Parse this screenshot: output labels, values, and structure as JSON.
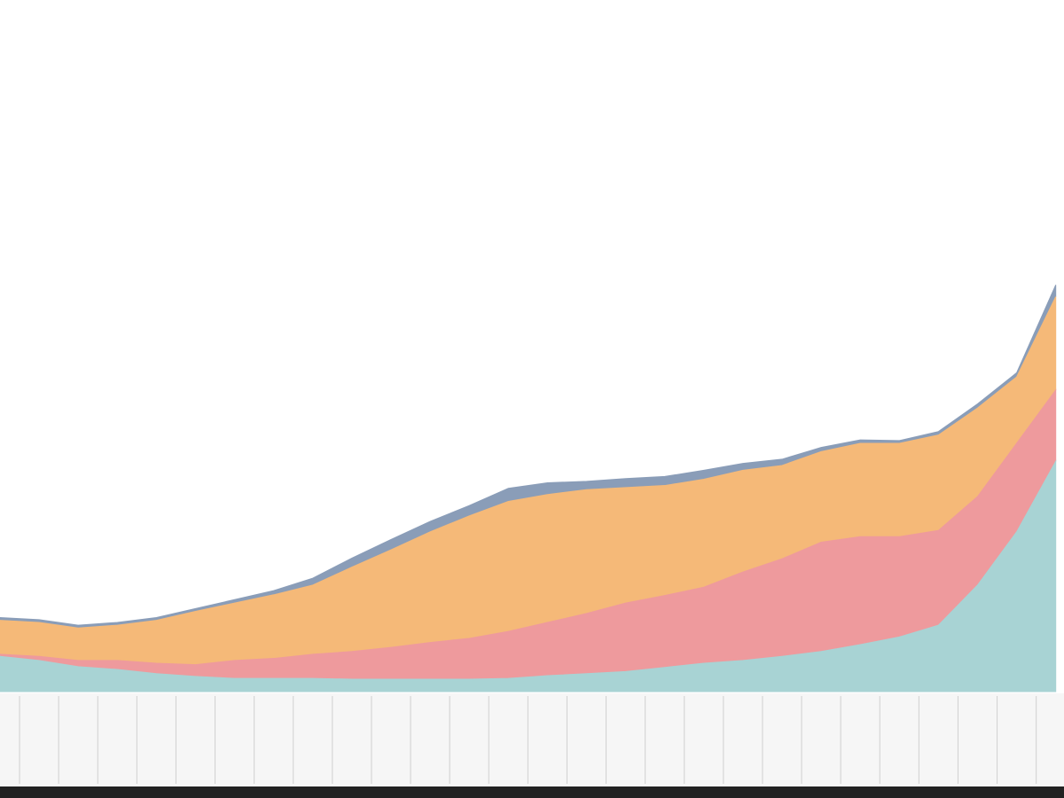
{
  "chart_data": {
    "type": "stacked_area",
    "categories": [
      null,
      null,
      null,
      null,
      null,
      null,
      null,
      null,
      null,
      null,
      null,
      null,
      null,
      null,
      null,
      null,
      null,
      null,
      null,
      null,
      null,
      null,
      null,
      null,
      null,
      null,
      null,
      null
    ],
    "ylim": [
      0,
      100
    ],
    "series": [
      {
        "color": "#a8d3d4",
        "values": [
          5.1,
          4.5,
          3.6,
          3.2,
          2.6,
          2.2,
          1.9,
          1.9,
          1.9,
          1.8,
          1.8,
          1.8,
          1.8,
          1.9,
          2.3,
          2.6,
          2.9,
          3.5,
          4.1,
          4.5,
          5.1,
          5.8,
          6.8,
          7.9,
          9.6,
          15.4,
          23.1,
          33.3
        ]
      },
      {
        "color": "#ee9a9d",
        "values": [
          0.3,
          0.6,
          0.9,
          1.3,
          1.5,
          1.7,
          2.6,
          2.9,
          3.5,
          4.0,
          4.6,
          5.3,
          5.9,
          6.8,
          7.7,
          8.7,
          9.9,
          10.4,
          11.0,
          12.8,
          14.1,
          15.8,
          15.6,
          14.5,
          13.7,
          12.8,
          12.8,
          10.3
        ]
      },
      {
        "color": "#f5b978",
        "values": [
          4.9,
          4.9,
          4.7,
          5.1,
          6.2,
          7.7,
          8.3,
          9.2,
          10.0,
          12.2,
          14.1,
          16.0,
          17.7,
          18.8,
          18.5,
          17.9,
          16.7,
          15.9,
          15.6,
          14.7,
          13.5,
          13.1,
          13.5,
          13.5,
          13.8,
          12.8,
          9.6,
          13.5
        ]
      },
      {
        "color": "#8a9db8",
        "values": [
          0.4,
          0.4,
          0.4,
          0.4,
          0.4,
          0.4,
          0.5,
          0.6,
          1.0,
          1.3,
          1.5,
          1.5,
          1.5,
          1.9,
          1.7,
          1.2,
          1.3,
          1.3,
          1.3,
          1.0,
          0.9,
          0.6,
          0.5,
          0.4,
          0.5,
          0.6,
          0.6,
          1.7
        ]
      }
    ]
  }
}
